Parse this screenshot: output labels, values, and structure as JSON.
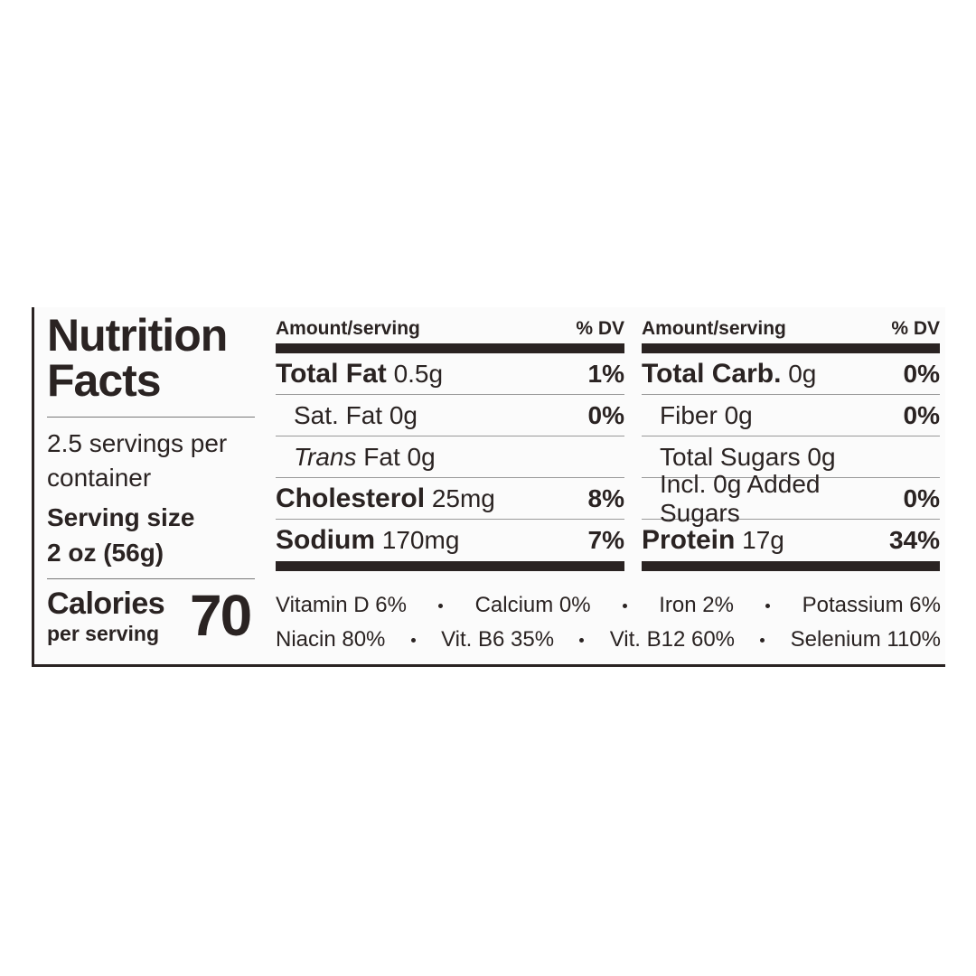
{
  "title": "Nutrition Facts",
  "servings": "2.5 servings per container",
  "serving_size_label": "Serving size",
  "serving_size": "2 oz (56g)",
  "calories_label": "Calories",
  "calories_sub": "per serving",
  "calories": "70",
  "columns": [
    {
      "header_amount": "Amount/serving",
      "header_dv": "% DV",
      "rows": [
        {
          "name": "Total Fat",
          "amount": "0.5g",
          "dv": "1%",
          "bold": true
        },
        {
          "name": "Sat. Fat",
          "amount": "0g",
          "dv": "0%",
          "indent": 1
        },
        {
          "name_italic": "Trans",
          "name": "Fat",
          "amount": "0g",
          "indent": 1
        },
        {
          "name": "Cholesterol",
          "amount": "25mg",
          "dv": "8%",
          "bold": true
        },
        {
          "name": "Sodium",
          "amount": "170mg",
          "dv": "7%",
          "bold": true
        }
      ]
    },
    {
      "header_amount": "Amount/serving",
      "header_dv": "% DV",
      "rows": [
        {
          "name": "Total Carb.",
          "amount": "0g",
          "dv": "0%",
          "bold": true
        },
        {
          "name": "Fiber",
          "amount": "0g",
          "dv": "0%",
          "indent": 1
        },
        {
          "name": "Total Sugars",
          "amount": "0g",
          "indent": 1
        },
        {
          "name": "Incl. 0g Added Sugars",
          "dv": "0%",
          "indent": 1
        },
        {
          "name": "Protein",
          "amount": "17g",
          "dv": "34%",
          "bold": true
        }
      ]
    }
  ],
  "vitamins": [
    [
      "Vitamin D 6%",
      "Calcium 0%",
      "Iron 2%",
      "Potassium 6%"
    ],
    [
      "Niacin 80%",
      "Vit. B6 35%",
      "Vit. B12 60%",
      "Selenium 110%"
    ]
  ]
}
